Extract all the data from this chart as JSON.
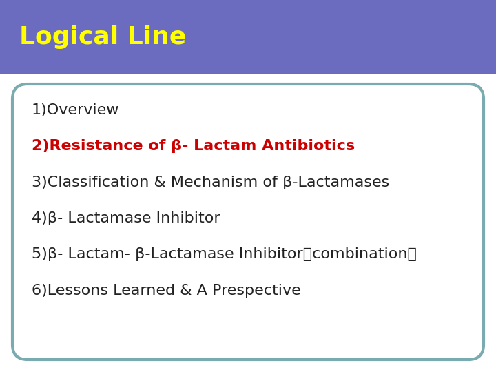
{
  "title": "Logical Line",
  "title_color": "#FFFF00",
  "title_bg_color": "#6B6BBF",
  "title_fontsize": 26,
  "body_bg_color": "#FFFFFF",
  "border_color": "#7AABB0",
  "outer_bg_color": "#FFFFFF",
  "sep_line_color": "#FFFFFF",
  "lines": [
    {
      "text": "1)Overview",
      "color": "#222222",
      "bold": false,
      "fontsize": 16
    },
    {
      "text": "2)Resistance of β- Lactam Antibiotics",
      "color": "#CC0000",
      "bold": true,
      "fontsize": 16
    },
    {
      "text": "3)Classification & Mechanism of β-Lactamases",
      "color": "#222222",
      "bold": false,
      "fontsize": 16
    },
    {
      "text": "4)β- Lactamase Inhibitor",
      "color": "#222222",
      "bold": false,
      "fontsize": 16
    },
    {
      "text": "5)β- Lactam- β-Lactamase Inhibitor（combination）",
      "color": "#222222",
      "bold": false,
      "fontsize": 16
    },
    {
      "text": "6)Lessons Learned & A Prespective",
      "color": "#222222",
      "bold": false,
      "fontsize": 16
    }
  ],
  "figsize": [
    7.2,
    5.4
  ],
  "dpi": 100
}
